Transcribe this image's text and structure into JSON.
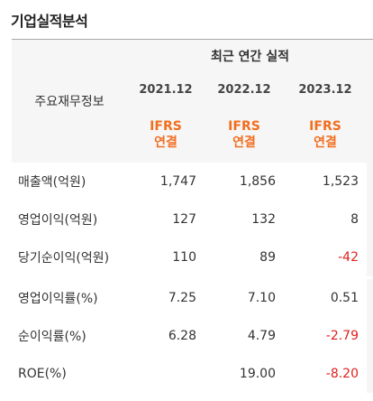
{
  "section_title": "기업실적분석",
  "header": {
    "label": "주요재무정보",
    "group": "최근 연간 실적",
    "years": [
      "2021.12",
      "2022.12",
      "2023.12"
    ],
    "standard_line1": "IFRS",
    "standard_line2": "연결"
  },
  "colors": {
    "accent": "#f26e1f",
    "negative": "#e0201f"
  },
  "rows": [
    {
      "label": "매출액(억원)",
      "values": [
        "1,747",
        "1,856",
        "1,523"
      ],
      "negative": [
        false,
        false,
        false
      ]
    },
    {
      "label": "영업이익(억원)",
      "values": [
        "127",
        "132",
        "8"
      ],
      "negative": [
        false,
        false,
        false
      ]
    },
    {
      "label": "당기순이익(억원)",
      "values": [
        "110",
        "89",
        "-42"
      ],
      "negative": [
        false,
        false,
        true
      ]
    },
    {
      "label": "영업이익률(%)",
      "values": [
        "7.25",
        "7.10",
        "0.51"
      ],
      "negative": [
        false,
        false,
        false
      ]
    },
    {
      "label": "순이익률(%)",
      "values": [
        "6.28",
        "4.79",
        "-2.79"
      ],
      "negative": [
        false,
        false,
        true
      ]
    },
    {
      "label": "ROE(%)",
      "values": [
        "",
        "19.00",
        "-8.20"
      ],
      "negative": [
        false,
        false,
        true
      ]
    }
  ]
}
